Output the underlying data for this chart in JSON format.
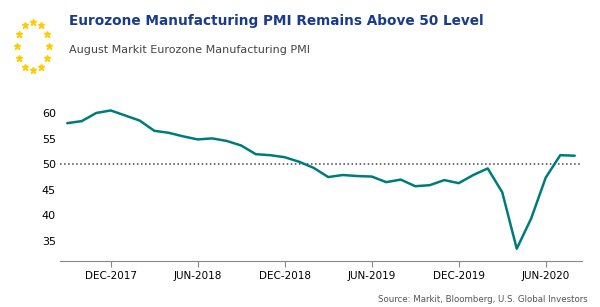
{
  "title": "Eurozone Manufacturing PMI Remains Above 50 Level",
  "subtitle": "August Markit Eurozone Manufacturing PMI",
  "source": "Source: Markit, Bloomberg, U.S. Global Investors",
  "line_color": "#007b7b",
  "line_width": 1.8,
  "dashed_line_y": 50,
  "ylim": [
    31,
    63
  ],
  "yticks": [
    35,
    40,
    45,
    50,
    55,
    60
  ],
  "background_color": "#ffffff",
  "title_color": "#1a3a8c",
  "subtitle_color": "#444444",
  "eu_flag_blue": "#003399",
  "eu_flag_yellow": "#FFCC00",
  "values": [
    58.1,
    58.5,
    60.1,
    60.6,
    59.6,
    58.6,
    56.6,
    56.2,
    55.5,
    54.9,
    55.1,
    54.6,
    53.7,
    52.0,
    51.8,
    51.4,
    50.5,
    49.3,
    47.5,
    47.9,
    47.7,
    47.6,
    46.5,
    47.0,
    45.7,
    45.9,
    46.9,
    46.3,
    47.9,
    49.2,
    44.5,
    33.4,
    39.4,
    47.4,
    51.8,
    51.7
  ],
  "xtick_positions": [
    3,
    9,
    15,
    21,
    27,
    33
  ],
  "xtick_labels": [
    "DEC-2017",
    "JUN-2018",
    "DEC-2018",
    "JUN-2019",
    "DEC-2019",
    "JUN-2020"
  ],
  "n_points": 36
}
